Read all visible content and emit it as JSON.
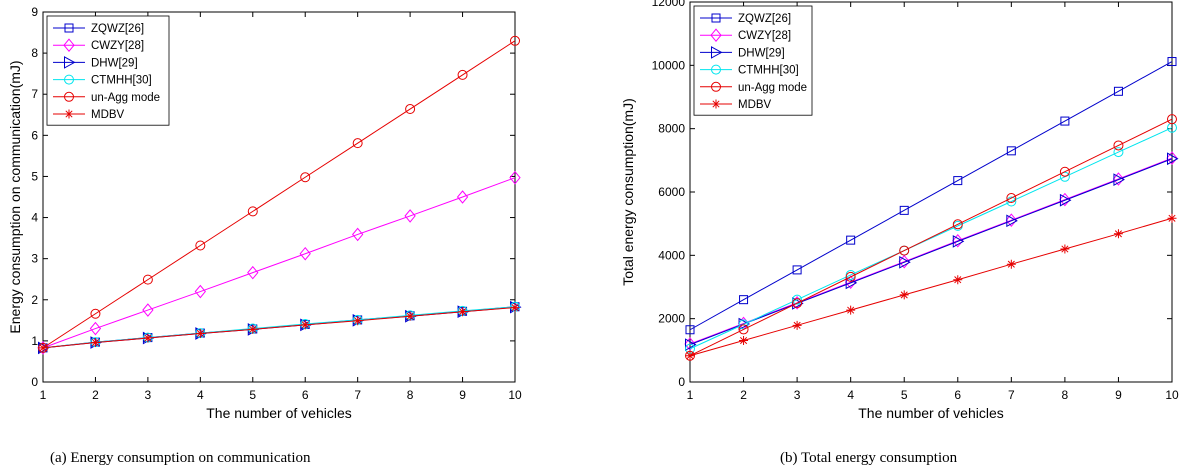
{
  "chart_data": [
    {
      "type": "line",
      "caption": "(a) Energy consumption on communication",
      "xlabel": "The number of vehicles",
      "ylabel": "Energy consumption on communication(mJ)",
      "x": [
        1,
        2,
        3,
        4,
        5,
        6,
        7,
        8,
        9,
        10
      ],
      "xlim": [
        1,
        10
      ],
      "ylim": [
        0,
        9
      ],
      "xticks": [
        1,
        2,
        3,
        4,
        5,
        6,
        7,
        8,
        9,
        10
      ],
      "yticks": [
        0,
        1,
        2,
        3,
        4,
        5,
        6,
        7,
        8,
        9
      ],
      "legend_position": "top-left",
      "series": [
        {
          "name": "ZQWZ[26]",
          "color": "#0000cc",
          "marker": "square",
          "values": [
            0.83,
            0.97,
            1.08,
            1.19,
            1.29,
            1.4,
            1.51,
            1.61,
            1.72,
            1.83
          ]
        },
        {
          "name": "CWZY[28]",
          "color": "#ff00ff",
          "marker": "diamond",
          "values": [
            0.83,
            1.3,
            1.75,
            2.2,
            2.66,
            3.12,
            3.59,
            4.04,
            4.5,
            4.97
          ]
        },
        {
          "name": "DHW[29]",
          "color": "#0000cc",
          "marker": "triangle-right",
          "values": [
            0.83,
            0.96,
            1.07,
            1.18,
            1.28,
            1.39,
            1.5,
            1.6,
            1.71,
            1.82
          ]
        },
        {
          "name": "CTMHH[30]",
          "color": "#00e5ee",
          "marker": "circle",
          "values": [
            0.83,
            0.97,
            1.08,
            1.19,
            1.3,
            1.41,
            1.51,
            1.62,
            1.73,
            1.83
          ]
        },
        {
          "name": "un-Agg mode",
          "color": "#e60000",
          "marker": "circle",
          "values": [
            0.83,
            1.66,
            2.49,
            3.32,
            4.15,
            4.98,
            5.81,
            6.64,
            7.47,
            8.3
          ]
        },
        {
          "name": "MDBV",
          "color": "#e60000",
          "marker": "asterisk",
          "values": [
            0.83,
            0.96,
            1.07,
            1.18,
            1.28,
            1.39,
            1.49,
            1.6,
            1.71,
            1.81
          ]
        }
      ]
    },
    {
      "type": "line",
      "caption": "(b) Total energy consumption",
      "xlabel": "The number of vehicles",
      "ylabel": "Total energy consumption(mJ)",
      "x": [
        1,
        2,
        3,
        4,
        5,
        6,
        7,
        8,
        9,
        10
      ],
      "xlim": [
        1,
        10
      ],
      "ylim": [
        0,
        12000
      ],
      "xticks": [
        1,
        2,
        3,
        4,
        5,
        6,
        7,
        8,
        9,
        10
      ],
      "yticks": [
        0,
        2000,
        4000,
        6000,
        8000,
        10000,
        12000
      ],
      "legend_position": "top-left",
      "series": [
        {
          "name": "ZQWZ[26]",
          "color": "#0000cc",
          "marker": "square",
          "values": [
            1650,
            2600,
            3540,
            4480,
            5420,
            6360,
            7300,
            8240,
            9180,
            10120
          ]
        },
        {
          "name": "CWZY[28]",
          "color": "#ff00ff",
          "marker": "diamond",
          "values": [
            1200,
            1850,
            2500,
            3150,
            3800,
            4460,
            5110,
            5760,
            6410,
            7070
          ]
        },
        {
          "name": "DHW[29]",
          "color": "#0000cc",
          "marker": "triangle-right",
          "values": [
            1180,
            1830,
            2480,
            3130,
            3780,
            4440,
            5090,
            5740,
            6390,
            7050
          ]
        },
        {
          "name": "CTMHH[30]",
          "color": "#00e5ee",
          "marker": "circle",
          "values": [
            1050,
            1820,
            2600,
            3380,
            4150,
            4930,
            5700,
            6480,
            7260,
            8030
          ]
        },
        {
          "name": "un-Agg mode",
          "color": "#e60000",
          "marker": "circle",
          "values": [
            830,
            1660,
            2490,
            3320,
            4150,
            4980,
            5810,
            6640,
            7470,
            8300
          ]
        },
        {
          "name": "MDBV",
          "color": "#e60000",
          "marker": "asterisk",
          "values": [
            830,
            1310,
            1790,
            2270,
            2750,
            3230,
            3720,
            4200,
            4680,
            5170
          ]
        }
      ]
    }
  ]
}
